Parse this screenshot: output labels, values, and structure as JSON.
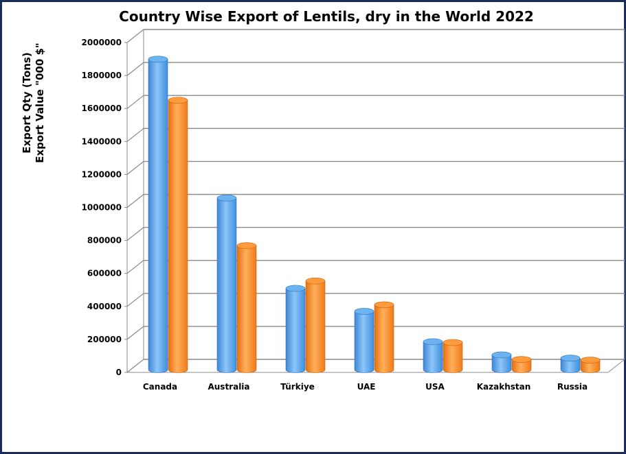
{
  "chart_data": {
    "type": "bar",
    "title": "Country Wise Export of Lentils, dry in the World 2022",
    "ylabel_lines": [
      "Export Qty (Tons)",
      "Export Value \"000 $\""
    ],
    "categories": [
      "Canada",
      "Australia",
      "Türkiye",
      "UAE",
      "USA",
      "Kazakhstan",
      "Russia"
    ],
    "series": [
      {
        "values": [
          1890000,
          1045000,
          495000,
          355000,
          170000,
          90000,
          70000
        ],
        "color": "#5aa6ea"
      },
      {
        "values": [
          1640000,
          755000,
          540000,
          395000,
          165000,
          62000,
          58000
        ],
        "color": "#ff8a22"
      }
    ],
    "ylim": [
      0,
      2000000
    ],
    "yticks": [
      "0",
      "200000",
      "400000",
      "600000",
      "800000",
      "1000000",
      "1200000",
      "1400000",
      "1600000",
      "1800000",
      "2000000"
    ],
    "grid": true
  }
}
